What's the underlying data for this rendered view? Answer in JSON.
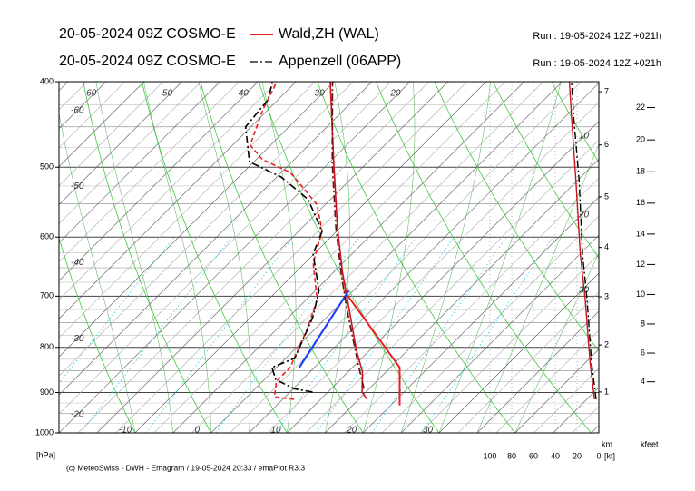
{
  "chart_data": {
    "type": "emagram",
    "stations": [
      {
        "title": "20-05-2024 09Z COSMO-E",
        "name": "Wald,ZH (WAL)",
        "run": "Run : 19-05-2024 12Z +021h",
        "color": "#ee1c24",
        "temperature": {
          "color": "#c8141c",
          "pressure": [
            916,
            899,
            853,
            804,
            723,
            658,
            584,
            495,
            400
          ],
          "values": [
            16.1,
            14.5,
            11.9,
            8.1,
            1.8,
            -3.8,
            -10.5,
            -19.3,
            -30.5
          ]
        },
        "dewpoint": {
          "color": "#ee1c24",
          "pressure": [
            916,
            910,
            874,
            843,
            758,
            706,
            642,
            591,
            551,
            507,
            490,
            472,
            430,
            400
          ],
          "values": [
            6.5,
            3.6,
            1.8,
            1.8,
            -1.2,
            -3.6,
            -8.9,
            -11.9,
            -16.1,
            -23.8,
            -29.2,
            -32.7,
            -35.7,
            -37.5
          ]
        },
        "parcel": {
          "color": "#ee1c24",
          "pressure": [
            931,
            843,
            690
          ],
          "values": [
            21.2,
            16.2,
            -1.2
          ]
        },
        "lift": {
          "color": "#1f3fff",
          "pressure": [
            843,
            690
          ],
          "values": [
            3.0,
            -0.6
          ]
        },
        "wind_speed": {
          "color": "#c8141c",
          "pressure": [
            916,
            833,
            706,
            627,
            519,
            440,
            400
          ],
          "values": [
            4,
            8,
            12.5,
            17,
            21,
            25,
            27
          ]
        }
      },
      {
        "title": "20-05-2024 09Z COSMO-E",
        "name": "Appenzell (06APP)",
        "run": "Run : 19-05-2024 12Z +021h",
        "color": "#000000",
        "temperature": {
          "color": "#6a0f0f",
          "pressure": [
            891,
            833,
            723,
            658,
            584,
            495,
            400
          ],
          "values": [
            14.3,
            10.1,
            1.5,
            -4.0,
            -10.7,
            -19.5,
            -30.2
          ]
        },
        "dewpoint": {
          "color": "#000000",
          "pressure": [
            899,
            891,
            870,
            843,
            823,
            740,
            690,
            627,
            591,
            544,
            513,
            493,
            450,
            419,
            400
          ],
          "values": [
            8.0,
            5.1,
            1.5,
            -0.6,
            1.2,
            -1.8,
            -4.5,
            -10.1,
            -11.9,
            -17.9,
            -24.4,
            -30.6,
            -35.7,
            -36.3,
            -38.1
          ]
        },
        "wind_speed": {
          "color": "#000000",
          "pressure": [
            916,
            833,
            706,
            627,
            519,
            440,
            400
          ],
          "values": [
            2.5,
            6.7,
            10.8,
            15,
            18,
            23,
            25
          ]
        }
      }
    ],
    "ylim": [
      1000,
      400
    ],
    "yticks": [
      1000,
      900,
      800,
      700,
      600,
      500,
      400
    ],
    "log_y": true,
    "y_label": "[hPa]",
    "xlim": [
      -20,
      51
    ],
    "isotherm_labels": {
      "bottom": [
        -10,
        0,
        10,
        20,
        30
      ],
      "left": [
        -20,
        -30,
        -40,
        -50,
        -60
      ],
      "top": [
        -60,
        -50,
        -40,
        -30,
        -20
      ]
    },
    "theta_w_labels": [
      10,
      20,
      30
    ],
    "wind_axis": {
      "label": "[kt]",
      "xlim": [
        100,
        0
      ],
      "xticks": [
        100,
        80,
        60,
        40,
        20,
        0
      ]
    },
    "km_axis": {
      "label": "km",
      "ticks": [
        1,
        2,
        3,
        4,
        5,
        6,
        7
      ]
    },
    "kfeet_axis": {
      "label": "kfeet",
      "ticks": [
        4,
        6,
        8,
        10,
        12,
        14,
        16,
        18,
        20,
        22
      ]
    },
    "footer": "(c) MeteoSwiss - DWH - Emagram / 19-05-2024 20:33 / emaPlot R3.3"
  }
}
